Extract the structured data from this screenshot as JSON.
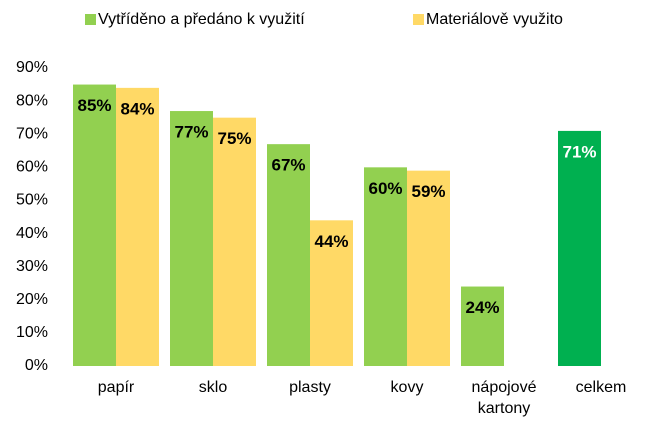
{
  "chart_data": {
    "type": "bar",
    "categories": [
      "papír",
      "sklo",
      "plasty",
      "kovy",
      "nápojové kartony",
      "celkem"
    ],
    "series": [
      {
        "name": "Vytříděno a předáno k využití",
        "color": "#92d050",
        "colors": [
          "#92d050",
          "#92d050",
          "#92d050",
          "#92d050",
          "#92d050",
          "#00b050"
        ],
        "values": [
          85,
          77,
          67,
          60,
          24,
          71
        ],
        "value_labels": [
          "85%",
          "77%",
          "67%",
          "60%",
          "24%",
          "71%"
        ]
      },
      {
        "name": "Materiálově využito",
        "color": "#ffd966",
        "values": [
          84,
          75,
          44,
          59,
          null,
          null
        ],
        "value_labels": [
          "84%",
          "75%",
          "44%",
          "59%",
          null,
          null
        ]
      }
    ],
    "ylim": [
      0,
      90
    ],
    "yticks": [
      {
        "value": 0,
        "label": "0%"
      },
      {
        "value": 10,
        "label": "10%"
      },
      {
        "value": 20,
        "label": "20%"
      },
      {
        "value": 30,
        "label": "30%"
      },
      {
        "value": 40,
        "label": "40%"
      },
      {
        "value": 50,
        "label": "50%"
      },
      {
        "value": 60,
        "label": "60%"
      },
      {
        "value": 70,
        "label": "70%"
      },
      {
        "value": 80,
        "label": "80%"
      },
      {
        "value": 90,
        "label": "90%"
      }
    ],
    "grid": false
  }
}
